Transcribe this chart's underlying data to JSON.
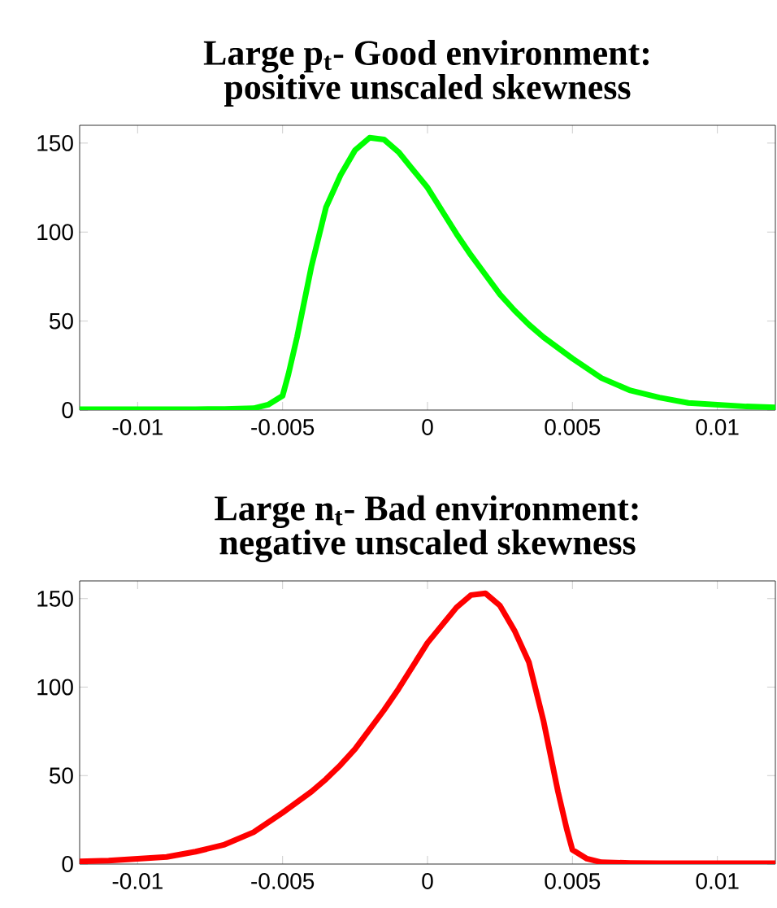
{
  "chart_data": [
    {
      "type": "line",
      "title": "Large p$_{t}$- Good environment:",
      "subtitle": "positive unscaled skewness",
      "x": [
        -0.012,
        -0.01,
        -0.008,
        -0.007,
        -0.006,
        -0.0055,
        -0.005,
        -0.0048,
        -0.0045,
        -0.004,
        -0.0035,
        -0.003,
        -0.0025,
        -0.002,
        -0.0015,
        -0.001,
        -0.0005,
        0,
        0.0005,
        0.001,
        0.0015,
        0.002,
        0.0025,
        0.003,
        0.0035,
        0.004,
        0.005,
        0.006,
        0.007,
        0.008,
        0.009,
        0.01,
        0.011,
        0.012
      ],
      "xlim": [
        -0.012,
        0.012
      ],
      "ylim": [
        0,
        160
      ],
      "xticks": [
        -0.01,
        -0.005,
        0,
        0.005,
        0.01
      ],
      "yticks": [
        0,
        50,
        100,
        150
      ],
      "series": [
        {
          "color": "#00ff00",
          "values": [
            0.5,
            0.5,
            0.5,
            0.6,
            1,
            3,
            8,
            20,
            41,
            81,
            114,
            132,
            146,
            153,
            152,
            145,
            135,
            125,
            112,
            99,
            87,
            76,
            65,
            56,
            48,
            41,
            29,
            18,
            11,
            7,
            4,
            3,
            2,
            1.5
          ]
        }
      ]
    },
    {
      "type": "line",
      "title": "Large n$_{t}$- Bad environment:",
      "subtitle": "negative unscaled skewness",
      "x": [
        -0.012,
        -0.011,
        -0.01,
        -0.009,
        -0.008,
        -0.007,
        -0.006,
        -0.005,
        -0.004,
        -0.0035,
        -0.003,
        -0.0025,
        -0.002,
        -0.0015,
        -0.001,
        -0.0005,
        0,
        0.0005,
        0.001,
        0.0015,
        0.002,
        0.0025,
        0.003,
        0.0035,
        0.004,
        0.0045,
        0.0048,
        0.005,
        0.0055,
        0.006,
        0.007,
        0.008,
        0.01,
        0.012
      ],
      "xlim": [
        -0.012,
        0.012
      ],
      "ylim": [
        0,
        160
      ],
      "xticks": [
        -0.01,
        -0.005,
        0,
        0.005,
        0.01
      ],
      "yticks": [
        0,
        50,
        100,
        150
      ],
      "series": [
        {
          "color": "#ff0000",
          "values": [
            1.5,
            2,
            3,
            4,
            7,
            11,
            18,
            29,
            41,
            48,
            56,
            65,
            76,
            87,
            99,
            112,
            125,
            135,
            145,
            152,
            153,
            146,
            132,
            114,
            81,
            41,
            20,
            8,
            3,
            1,
            0.6,
            0.5,
            0.5,
            0.5
          ]
        }
      ]
    }
  ]
}
